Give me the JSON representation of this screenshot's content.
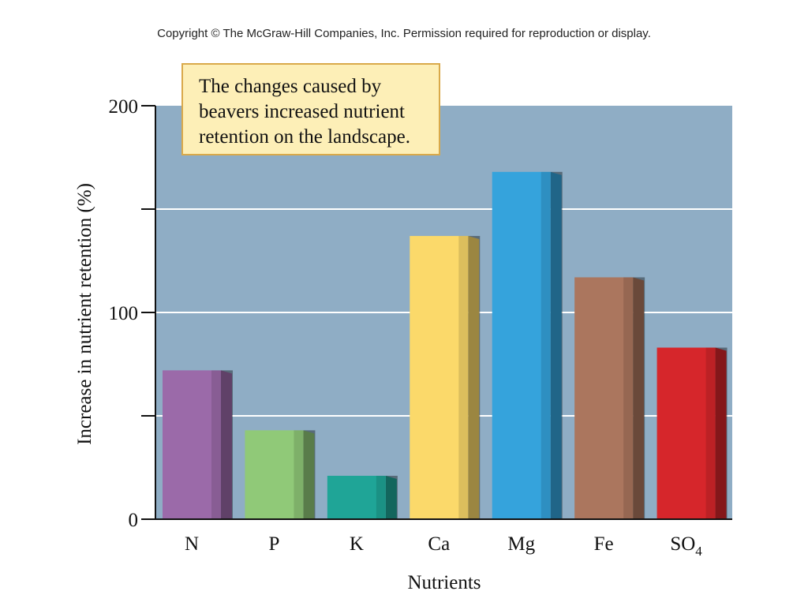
{
  "copyright": "Copyright © The McGraw-Hill Companies, Inc. Permission required for reproduction or display.",
  "callout": "The changes caused by beavers increased nutrient retention on the landscape.",
  "chart_data": {
    "type": "bar",
    "categories": [
      "N",
      "P",
      "K",
      "Ca",
      "Mg",
      "Fe",
      "SO4"
    ],
    "category_labels": [
      {
        "main": "N",
        "sub": ""
      },
      {
        "main": "P",
        "sub": ""
      },
      {
        "main": "K",
        "sub": ""
      },
      {
        "main": "Ca",
        "sub": ""
      },
      {
        "main": "Mg",
        "sub": ""
      },
      {
        "main": "Fe",
        "sub": ""
      },
      {
        "main": "SO",
        "sub": "4"
      }
    ],
    "values": [
      72,
      43,
      21,
      137,
      168,
      117,
      83
    ],
    "colors": [
      "#9b6aa9",
      "#90c978",
      "#1fa597",
      "#fbd96a",
      "#35a3dc",
      "#ab765e",
      "#d6262b"
    ],
    "xlabel": "Nutrients",
    "ylabel": "Increase in nutrient retention (%)",
    "ylim": [
      0,
      200
    ],
    "yticks": [
      0,
      100,
      200
    ],
    "gridlines": [
      50,
      100,
      150
    ],
    "plot_background": "#8fadc5",
    "grid": true
  }
}
